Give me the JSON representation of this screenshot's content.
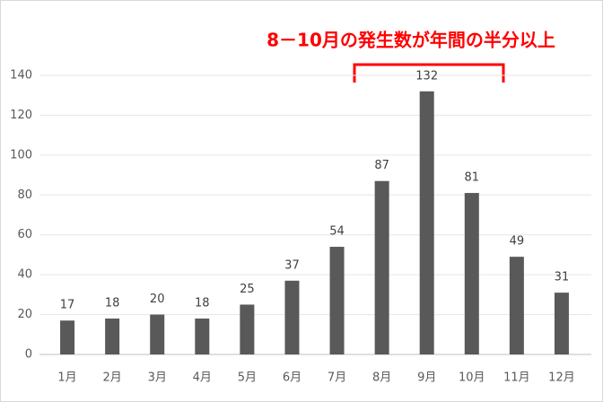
{
  "chart_data": {
    "type": "bar",
    "annotation": "8－10月の発生数が年間の半分以上",
    "annotation_color": "#ff0000",
    "categories": [
      "1月",
      "2月",
      "3月",
      "4月",
      "5月",
      "6月",
      "7月",
      "8月",
      "9月",
      "10月",
      "11月",
      "12月"
    ],
    "values": [
      17,
      18,
      20,
      18,
      25,
      37,
      54,
      87,
      132,
      81,
      49,
      31
    ],
    "color": "#595959",
    "ylim": [
      0,
      140
    ],
    "yticks": [
      0,
      20,
      40,
      60,
      80,
      100,
      120,
      140
    ],
    "grid": true,
    "data_labels": true
  }
}
